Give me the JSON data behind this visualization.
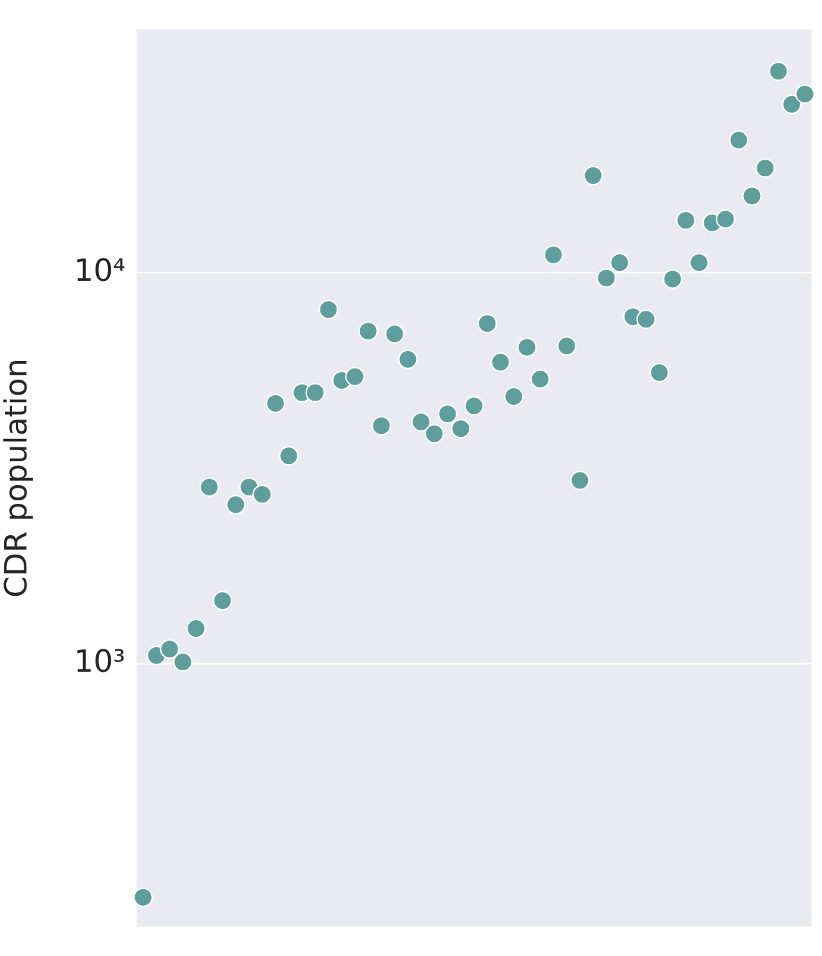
{
  "chart_data": {
    "type": "scatter",
    "ylabel": "CDR population",
    "log": "y",
    "grid": "y",
    "marker": "circle",
    "categories": [
      null,
      null,
      null,
      null,
      null,
      null,
      null,
      null,
      null,
      null,
      null,
      null,
      null,
      null,
      null,
      null,
      null,
      null,
      null,
      null,
      null,
      null,
      null,
      null,
      null,
      null,
      null,
      null,
      null,
      null,
      null,
      null,
      null,
      null,
      null,
      null,
      null,
      null,
      null,
      null,
      null,
      null,
      null,
      null,
      null,
      null,
      null,
      null,
      null,
      null,
      null
    ],
    "ylim": [
      213,
      41800
    ],
    "yticks": [
      {
        "value": 1000,
        "label": "10³"
      },
      {
        "value": 10000,
        "label": "10⁴"
      }
    ],
    "series": [
      {
        "color": "#5f9e9c",
        "values": [
          253,
          1050,
          1090,
          1010,
          1230,
          2830,
          1450,
          2550,
          2830,
          2710,
          4630,
          3400,
          4930,
          4930,
          8040,
          5300,
          5420,
          7080,
          4060,
          6970,
          6000,
          4150,
          3870,
          4350,
          3990,
          4560,
          7410,
          5900,
          4820,
          6440,
          5340,
          11100,
          6490,
          2940,
          17700,
          9680,
          10600,
          7710,
          7590,
          5550,
          9620,
          13600,
          10600,
          13400,
          13700,
          21800,
          15700,
          18500,
          32700,
          26900,
          28600
        ]
      }
    ]
  }
}
